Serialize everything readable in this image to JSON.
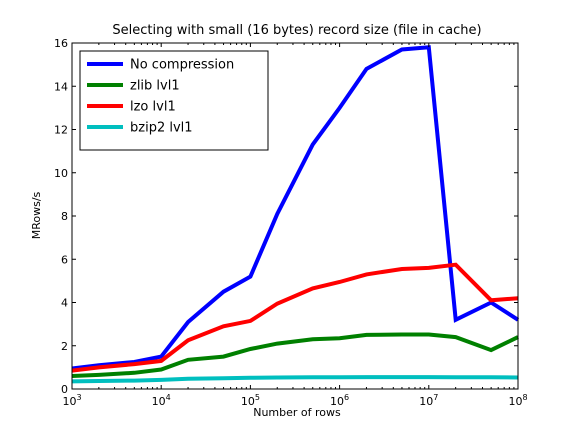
{
  "chart_data": {
    "type": "line",
    "title": "Selecting with small (16 bytes) record size (file in cache)",
    "xlabel": "Number of rows",
    "ylabel": "MRows/s",
    "xscale": "log",
    "xlim": [
      1000,
      100000000
    ],
    "ylim": [
      0,
      16
    ],
    "x_ticks": [
      {
        "value": 1000,
        "base": "10",
        "exp": "3"
      },
      {
        "value": 10000,
        "base": "10",
        "exp": "4"
      },
      {
        "value": 100000,
        "base": "10",
        "exp": "5"
      },
      {
        "value": 1000000,
        "base": "10",
        "exp": "6"
      },
      {
        "value": 10000000,
        "base": "10",
        "exp": "7"
      },
      {
        "value": 100000000,
        "base": "10",
        "exp": "8"
      }
    ],
    "y_ticks": [
      0,
      2,
      4,
      6,
      8,
      10,
      12,
      14,
      16
    ],
    "grid": false,
    "legend_position": "top-left",
    "x": [
      1000,
      2000,
      5000,
      10000,
      20000,
      50000,
      100000,
      200000,
      500000,
      1000000,
      2000000,
      5000000,
      10000000,
      20000000,
      50000000,
      100000000
    ],
    "series": [
      {
        "name": "No compression",
        "color": "#0000ff",
        "values": [
          0.95,
          1.1,
          1.25,
          1.5,
          3.1,
          4.5,
          5.2,
          8.1,
          11.3,
          13.0,
          14.8,
          15.7,
          15.8,
          3.2,
          4.0,
          3.2
        ]
      },
      {
        "name": "zlib lvl1",
        "color": "#008000",
        "values": [
          0.6,
          0.65,
          0.75,
          0.9,
          1.35,
          1.5,
          1.85,
          2.1,
          2.3,
          2.35,
          2.5,
          2.52,
          2.52,
          2.4,
          1.8,
          2.4
        ]
      },
      {
        "name": "lzo lvl1",
        "color": "#ff0000",
        "values": [
          0.85,
          1.0,
          1.15,
          1.3,
          2.25,
          2.9,
          3.15,
          3.95,
          4.65,
          4.95,
          5.3,
          5.55,
          5.6,
          5.75,
          4.1,
          4.2
        ]
      },
      {
        "name": "bzip2 lvl1",
        "color": "#00bfbf",
        "values": [
          0.35,
          0.37,
          0.39,
          0.42,
          0.47,
          0.5,
          0.52,
          0.53,
          0.54,
          0.54,
          0.55,
          0.55,
          0.55,
          0.54,
          0.54,
          0.53
        ]
      }
    ]
  }
}
